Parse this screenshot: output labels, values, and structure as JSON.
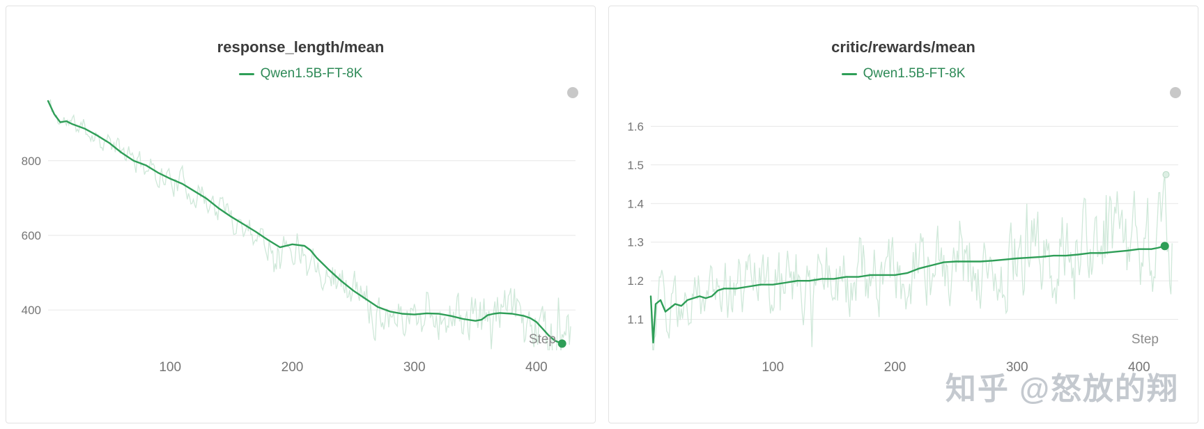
{
  "watermark": "知乎 @怒放的翔",
  "colors": {
    "line": "#2e9e57",
    "raw_line": "#cfe8d9",
    "raw_dot_fill": "#ddefe4",
    "raw_dot_stroke": "#b9d9c6",
    "legend_text": "#2e8a57",
    "title_text": "#3b3b3b",
    "tick_text": "#757575",
    "step_label": "#8c8c8c",
    "grid": "#e7e7e7",
    "panel_border": "#e2e2e2",
    "panel_handle": "#c8c8c8"
  },
  "chart_data": [
    {
      "type": "line",
      "title": "response_length/mean",
      "legend": [
        "Qwen1.5B-FT-8K"
      ],
      "legend_position": "top",
      "xlabel": "Step",
      "x_ticks": [
        100,
        200,
        300,
        400
      ],
      "y_ticks": [
        400,
        600,
        800
      ],
      "xlim": [
        0,
        432
      ],
      "ylim": [
        292,
        975
      ],
      "grid": "horizontal",
      "series": [
        {
          "name": "Qwen1.5B-FT-8K (smoothed)",
          "x": [
            0,
            5,
            10,
            15,
            20,
            30,
            40,
            50,
            60,
            70,
            80,
            90,
            100,
            110,
            120,
            130,
            140,
            150,
            160,
            170,
            180,
            190,
            200,
            210,
            215,
            220,
            230,
            240,
            250,
            260,
            270,
            280,
            290,
            300,
            310,
            320,
            330,
            340,
            350,
            355,
            360,
            365,
            370,
            380,
            390,
            395,
            400,
            405,
            410,
            415,
            421
          ],
          "y": [
            960,
            925,
            903,
            906,
            898,
            886,
            868,
            848,
            822,
            800,
            788,
            768,
            752,
            738,
            718,
            698,
            672,
            650,
            630,
            610,
            588,
            568,
            576,
            572,
            560,
            540,
            508,
            478,
            452,
            430,
            408,
            396,
            390,
            388,
            391,
            390,
            384,
            376,
            371,
            374,
            386,
            390,
            392,
            390,
            384,
            378,
            368,
            350,
            332,
            318,
            310
          ]
        }
      ],
      "raw": {
        "name": "Qwen1.5B-FT-8K (raw)",
        "seed": 11,
        "amplitude": 50,
        "start_factor": 0.45,
        "growth": 1.0,
        "end_x": 428
      },
      "end_point": {
        "x": 421,
        "y": 310
      }
    },
    {
      "type": "line",
      "title": "critic/rewards/mean",
      "legend": [
        "Qwen1.5B-FT-8K"
      ],
      "legend_position": "top",
      "xlabel": "Step",
      "x_ticks": [
        100,
        200,
        300,
        400
      ],
      "y_ticks": [
        1.1,
        1.2,
        1.3,
        1.4,
        1.5,
        1.6
      ],
      "xlim": [
        0,
        432
      ],
      "ylim": [
        1.02,
        1.68
      ],
      "grid": "horizontal",
      "series": [
        {
          "name": "Qwen1.5B-FT-8K (smoothed)",
          "x": [
            0,
            2,
            4,
            8,
            12,
            16,
            20,
            25,
            30,
            35,
            40,
            45,
            50,
            55,
            60,
            70,
            80,
            90,
            100,
            110,
            120,
            130,
            140,
            150,
            160,
            170,
            180,
            190,
            200,
            210,
            220,
            230,
            240,
            250,
            260,
            270,
            280,
            290,
            300,
            310,
            320,
            330,
            340,
            350,
            360,
            370,
            380,
            390,
            400,
            410,
            415,
            421
          ],
          "y": [
            1.16,
            1.04,
            1.14,
            1.15,
            1.12,
            1.13,
            1.14,
            1.135,
            1.15,
            1.155,
            1.16,
            1.155,
            1.16,
            1.175,
            1.18,
            1.18,
            1.185,
            1.19,
            1.19,
            1.195,
            1.2,
            1.2,
            1.205,
            1.205,
            1.21,
            1.21,
            1.215,
            1.215,
            1.215,
            1.22,
            1.232,
            1.24,
            1.248,
            1.25,
            1.25,
            1.25,
            1.252,
            1.255,
            1.258,
            1.26,
            1.262,
            1.265,
            1.265,
            1.268,
            1.272,
            1.272,
            1.275,
            1.278,
            1.282,
            1.282,
            1.285,
            1.29
          ]
        }
      ],
      "raw": {
        "name": "Qwen1.5B-FT-8K (raw)",
        "seed": 29,
        "amplitude": 0.09,
        "start_factor": 0.8,
        "growth": 0.6,
        "end_x": 427
      },
      "end_point": {
        "x": 421,
        "y": 1.29
      },
      "raw_end_point": {
        "x": 422,
        "y": 1.475
      }
    }
  ]
}
